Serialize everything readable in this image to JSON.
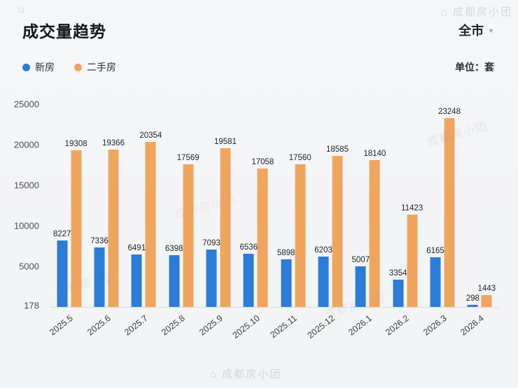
{
  "header": {
    "title": "成交量趋势",
    "region": "全市",
    "caret": "▼"
  },
  "unit_label": "单位：套",
  "legend": [
    {
      "label": "新房",
      "color": "#2b7cd6"
    },
    {
      "label": "二手房",
      "color": "#f0a55f"
    }
  ],
  "watermark": {
    "icon": "⌂",
    "text": "成都房小团",
    "full": "⌂ 成都房小团"
  },
  "chart_data": {
    "type": "bar",
    "title": "成交量趋势",
    "unit": "套",
    "categories": [
      "2025.5",
      "2025.6",
      "2025.7",
      "2025.8",
      "2025.9",
      "2025.10",
      "2025.11",
      "2025.12",
      "2026.1",
      "2026.2",
      "2026.3",
      "2026.4"
    ],
    "series": [
      {
        "name": "新房",
        "color": "#2b7cd6",
        "values": [
          8227,
          7336,
          6491,
          6398,
          7093,
          6536,
          5898,
          6203,
          5007,
          3354,
          6165,
          298
        ]
      },
      {
        "name": "二手房",
        "color": "#f0a55f",
        "values": [
          19308,
          19366,
          20354,
          17569,
          19581,
          17058,
          17560,
          18585,
          18140,
          11423,
          23248,
          1443
        ]
      }
    ],
    "y_ticks": [
      178,
      5000,
      10000,
      15000,
      20000,
      25000
    ],
    "ylim": [
      0,
      25000
    ],
    "grid": false,
    "legend_position": "top-left"
  }
}
